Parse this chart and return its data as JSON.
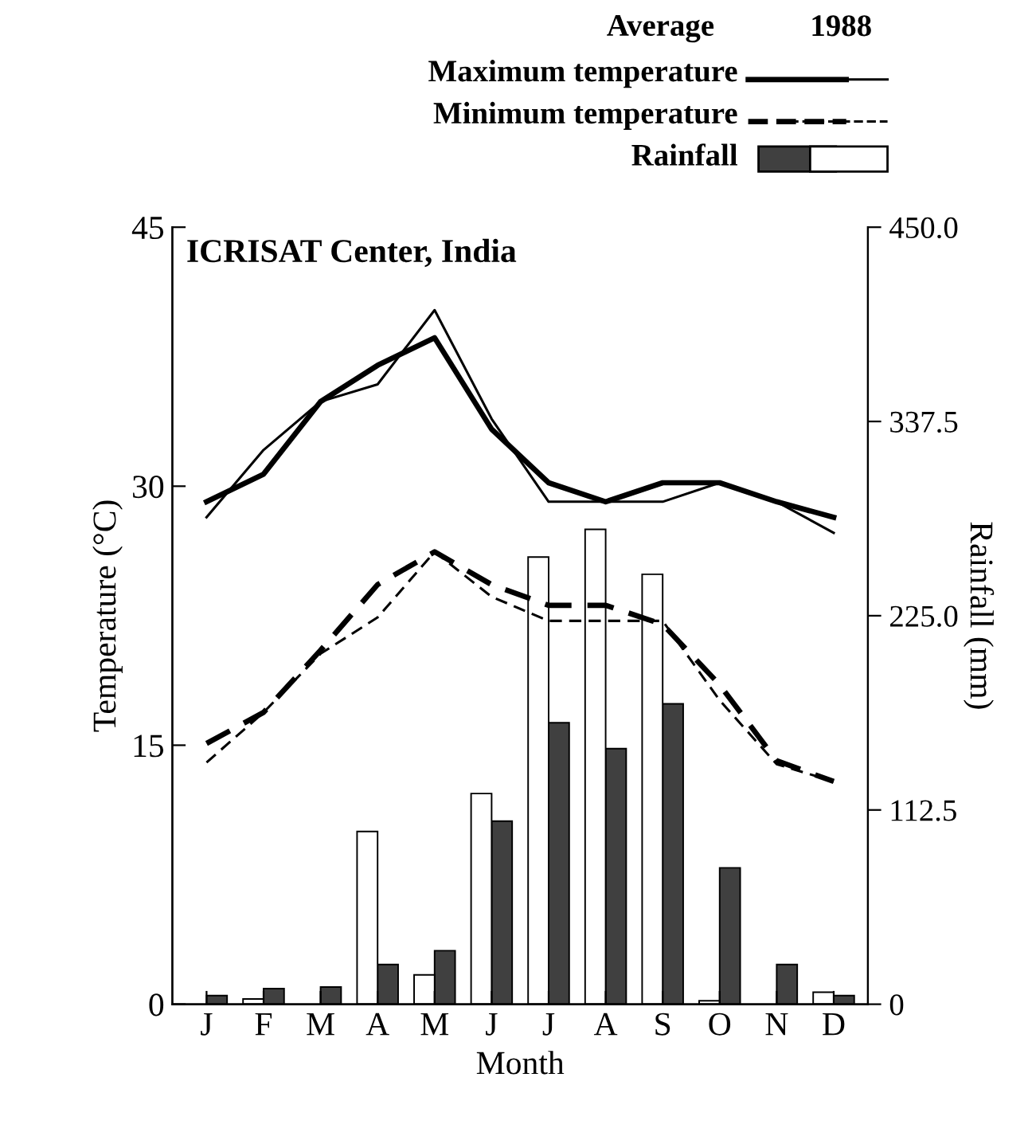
{
  "chart_data": {
    "type": "line",
    "title": "ICRISAT Center, India",
    "xlabel": "Month",
    "ylabel": "Temperature (°C)",
    "y2label": "Rainfall (mm)",
    "categories": [
      "J",
      "F",
      "M",
      "A",
      "M",
      "J",
      "J",
      "A",
      "S",
      "O",
      "N",
      "D"
    ],
    "ylim": [
      0,
      45
    ],
    "yticks": [
      0,
      15,
      30,
      45
    ],
    "y2lim": [
      0,
      450
    ],
    "y2ticks": [
      {
        "value": 0,
        "label": "0"
      },
      {
        "value": 112.5,
        "label": "112.5"
      },
      {
        "value": 225,
        "label": "225.0"
      },
      {
        "value": 337.5,
        "label": "337.5"
      },
      {
        "value": 450,
        "label": "450.0"
      }
    ],
    "annotations": [
      "Average",
      "1988"
    ],
    "legend": "top",
    "grid": false,
    "marker": "none",
    "series": [
      {
        "name": "Maximum temperature",
        "color": "#000000",
        "line_style": "solid",
        "values": [
          29.1,
          30.7,
          34.9,
          37.0,
          38.6,
          33.3,
          30.2,
          29.1,
          30.2,
          30.2,
          29.1,
          28.2
        ]
      },
      {
        "color": "#000000",
        "line_style": "solid",
        "values": [
          28.2,
          32.1,
          34.9,
          35.9,
          40.2,
          33.9,
          29.1,
          29.1,
          29.1,
          30.2,
          29.1,
          27.3
        ]
      },
      {
        "name": "Minimum temperature",
        "color": "#000000",
        "line_style": "dashed",
        "values": [
          15.1,
          16.9,
          20.5,
          24.3,
          26.2,
          24.3,
          23.1,
          23.1,
          22.0,
          18.5,
          14.1,
          12.9
        ]
      },
      {
        "color": "#000000",
        "line_style": "dashed",
        "values": [
          14.0,
          16.9,
          20.3,
          22.4,
          26.2,
          23.6,
          22.2,
          22.2,
          22.2,
          17.6,
          13.9,
          12.9
        ]
      },
      {
        "name": "Rainfall",
        "type": "bar",
        "axis": "y2",
        "color": "#404040",
        "values": [
          5,
          9,
          10,
          23,
          31,
          106,
          163,
          148,
          174,
          79,
          23,
          5
        ]
      },
      {
        "type": "bar",
        "axis": "y2",
        "color": "#ffffff",
        "values": [
          null,
          3,
          null,
          100,
          17,
          122,
          259,
          275,
          249,
          2,
          null,
          7
        ]
      }
    ]
  }
}
